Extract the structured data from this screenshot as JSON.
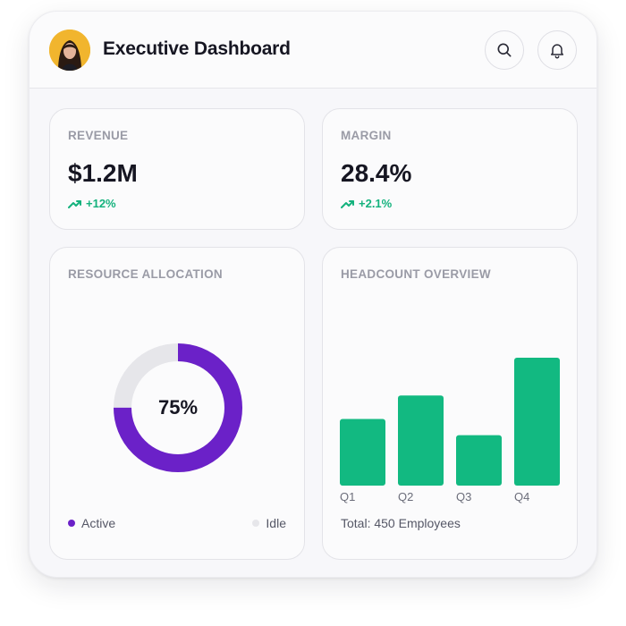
{
  "header": {
    "title": "Executive Dashboard",
    "actions": {
      "search_icon": "search-icon",
      "notifications_icon": "bell-icon"
    }
  },
  "metrics": [
    {
      "label": "REVENUE",
      "value": "$1.2M",
      "delta": "+12%",
      "trend_icon": "trending-up-icon"
    },
    {
      "label": "MARGIN",
      "value": "28.4%",
      "delta": "+2.1%",
      "trend_icon": "trending-up-icon"
    }
  ],
  "resource_allocation": {
    "label": "RESOURCE ALLOCATION",
    "center_text": "75%",
    "active_fraction": 0.75,
    "legend": {
      "active": "Active",
      "idle": "Idle"
    }
  },
  "headcount": {
    "label": "HEADCOUNT OVERVIEW",
    "total_text": "Total: 450 Employees"
  },
  "colors": {
    "accent_purple": "#6b21c8",
    "idle_gray": "#e6e6ea",
    "positive_green": "#14b27d",
    "bar_green": "#12b981"
  },
  "chart_data": [
    {
      "type": "pie",
      "title": "RESOURCE ALLOCATION",
      "categories": [
        "Active",
        "Idle"
      ],
      "values": [
        75,
        25
      ]
    },
    {
      "type": "bar",
      "title": "HEADCOUNT OVERVIEW",
      "categories": [
        "Q1",
        "Q2",
        "Q3",
        "Q4"
      ],
      "values": [
        74,
        100,
        56,
        142
      ],
      "grid": false
    }
  ]
}
